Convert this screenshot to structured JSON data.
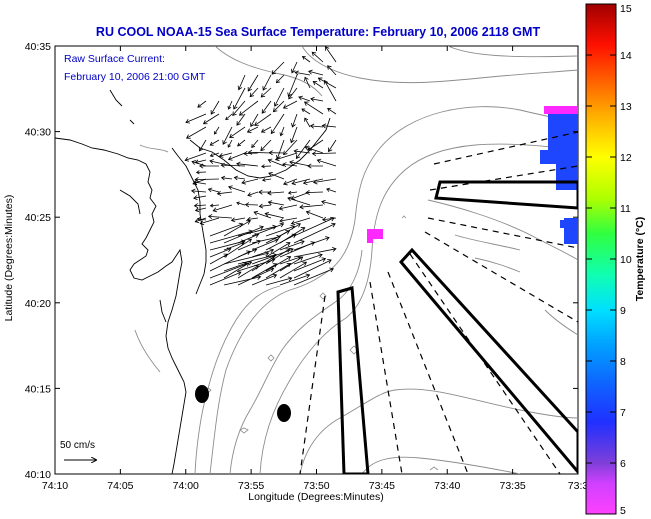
{
  "title": "RU COOL  NOAA-15  Sea Surface Temperature:  February 10, 2006 2118 GMT",
  "current_legend": {
    "line1": "Raw Surface Current:",
    "line2": "February 10, 2006 21:00 GMT"
  },
  "scale": {
    "label": "50 cm/s"
  },
  "axes": {
    "xlabel": "Longitude (Degrees:Minutes)",
    "ylabel": "Latitude (Degrees:Minutes)",
    "x_ticks": [
      "74:10",
      "74:05",
      "74:00",
      "73:55",
      "73:50",
      "73:45",
      "73:40",
      "73:35",
      "73:3"
    ],
    "y_ticks": [
      "40:10",
      "40:15",
      "40:20",
      "40:25",
      "40:30",
      "40:35"
    ]
  },
  "colorbar": {
    "label": "Temperature (°C)",
    "ticks": [
      "5",
      "6",
      "7",
      "8",
      "9",
      "10",
      "11",
      "12",
      "13",
      "14",
      "15"
    ],
    "min": 5,
    "max": 15
  },
  "colors": {
    "title": "#0000c8",
    "land_fill": "#ffffff",
    "sst_blue": "#1e46ff",
    "sst_magenta": "#ff28ff"
  }
}
